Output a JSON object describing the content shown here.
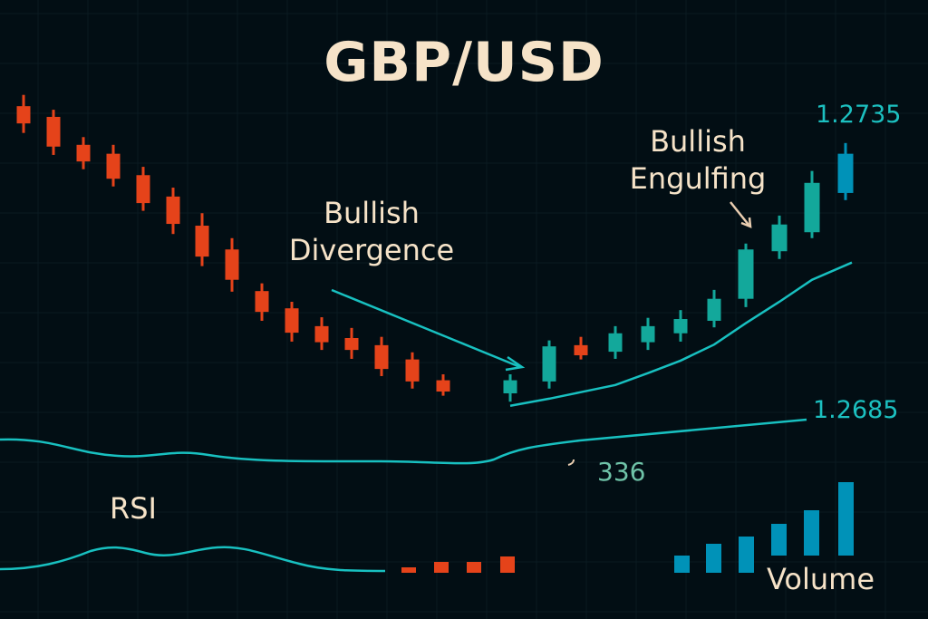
{
  "chart_data": {
    "type": "candlestick",
    "title": "GBP/USD",
    "colors": {
      "bearish": "#e5431a",
      "bullish": "#13a89b",
      "latest": "#0092b8",
      "line": "#18c0c0",
      "text": "#f6e3c8",
      "background": "#020e14"
    },
    "grid": true,
    "price_labels": [
      "1.2735",
      "1.2685"
    ],
    "candles": [
      {
        "o": 1.275,
        "h": 1.2769,
        "l": 1.2705,
        "c": 1.2721
      },
      {
        "o": 1.2732,
        "h": 1.2744,
        "l": 1.2668,
        "c": 1.2682
      },
      {
        "o": 1.2685,
        "h": 1.2698,
        "l": 1.2644,
        "c": 1.2657
      },
      {
        "o": 1.267,
        "h": 1.2685,
        "l": 1.2615,
        "c": 1.2628
      },
      {
        "o": 1.2634,
        "h": 1.2648,
        "l": 1.2574,
        "c": 1.2587
      },
      {
        "o": 1.2598,
        "h": 1.2613,
        "l": 1.2535,
        "c": 1.2552
      },
      {
        "o": 1.2549,
        "h": 1.257,
        "l": 1.2481,
        "c": 1.2497
      },
      {
        "o": 1.2509,
        "h": 1.2528,
        "l": 1.2438,
        "c": 1.2458
      },
      {
        "o": 1.2439,
        "h": 1.2452,
        "l": 1.2389,
        "c": 1.2404
      },
      {
        "o": 1.241,
        "h": 1.2421,
        "l": 1.2354,
        "c": 1.2369
      },
      {
        "o": 1.238,
        "h": 1.2395,
        "l": 1.234,
        "c": 1.2353
      },
      {
        "o": 1.236,
        "h": 1.2377,
        "l": 1.2325,
        "c": 1.234
      },
      {
        "o": 1.2348,
        "h": 1.2362,
        "l": 1.2296,
        "c": 1.2308
      },
      {
        "o": 1.2324,
        "h": 1.2336,
        "l": 1.2275,
        "c": 1.2287
      },
      {
        "o": 1.2289,
        "h": 1.2299,
        "l": 1.2263,
        "c": 1.227
      },
      {
        "o": 1.2267,
        "h": 1.2299,
        "l": 1.2253,
        "c": 1.2289
      },
      {
        "o": 1.2287,
        "h": 1.2356,
        "l": 1.2275,
        "c": 1.2346
      },
      {
        "o": 1.2348,
        "h": 1.2362,
        "l": 1.2324,
        "c": 1.2331
      },
      {
        "o": 1.2337,
        "h": 1.238,
        "l": 1.2325,
        "c": 1.2368
      },
      {
        "o": 1.2353,
        "h": 1.2394,
        "l": 1.234,
        "c": 1.238
      },
      {
        "o": 1.2368,
        "h": 1.2407,
        "l": 1.2354,
        "c": 1.2392
      },
      {
        "o": 1.2389,
        "h": 1.2441,
        "l": 1.2378,
        "c": 1.2426
      },
      {
        "o": 1.2426,
        "h": 1.2519,
        "l": 1.2412,
        "c": 1.2509
      },
      {
        "o": 1.2506,
        "h": 1.2566,
        "l": 1.2493,
        "c": 1.2551
      },
      {
        "o": 1.2538,
        "h": 1.2641,
        "l": 1.2528,
        "c": 1.2621
      },
      {
        "o": 1.2604,
        "h": 1.2688,
        "l": 1.2592,
        "c": 1.267
      }
    ],
    "moving_average": {
      "from_candle": 16,
      "values": [
        1.2246,
        1.2258,
        1.2269,
        1.2281,
        1.2301,
        1.2322,
        1.2349,
        1.2385,
        1.2421,
        1.2458,
        1.2487
      ]
    },
    "annotations": {
      "divergence": {
        "line1": "Bullish",
        "line2": "Divergence"
      },
      "engulfing": {
        "line1": "Bullish",
        "line2": "Engulfing"
      },
      "value": "336"
    },
    "rsi_label": "RSI",
    "volume_label": "Volume",
    "volume_bearish": [
      6,
      12,
      12,
      18
    ],
    "volume_bullish": [
      19,
      32,
      40,
      35,
      50,
      81
    ]
  }
}
